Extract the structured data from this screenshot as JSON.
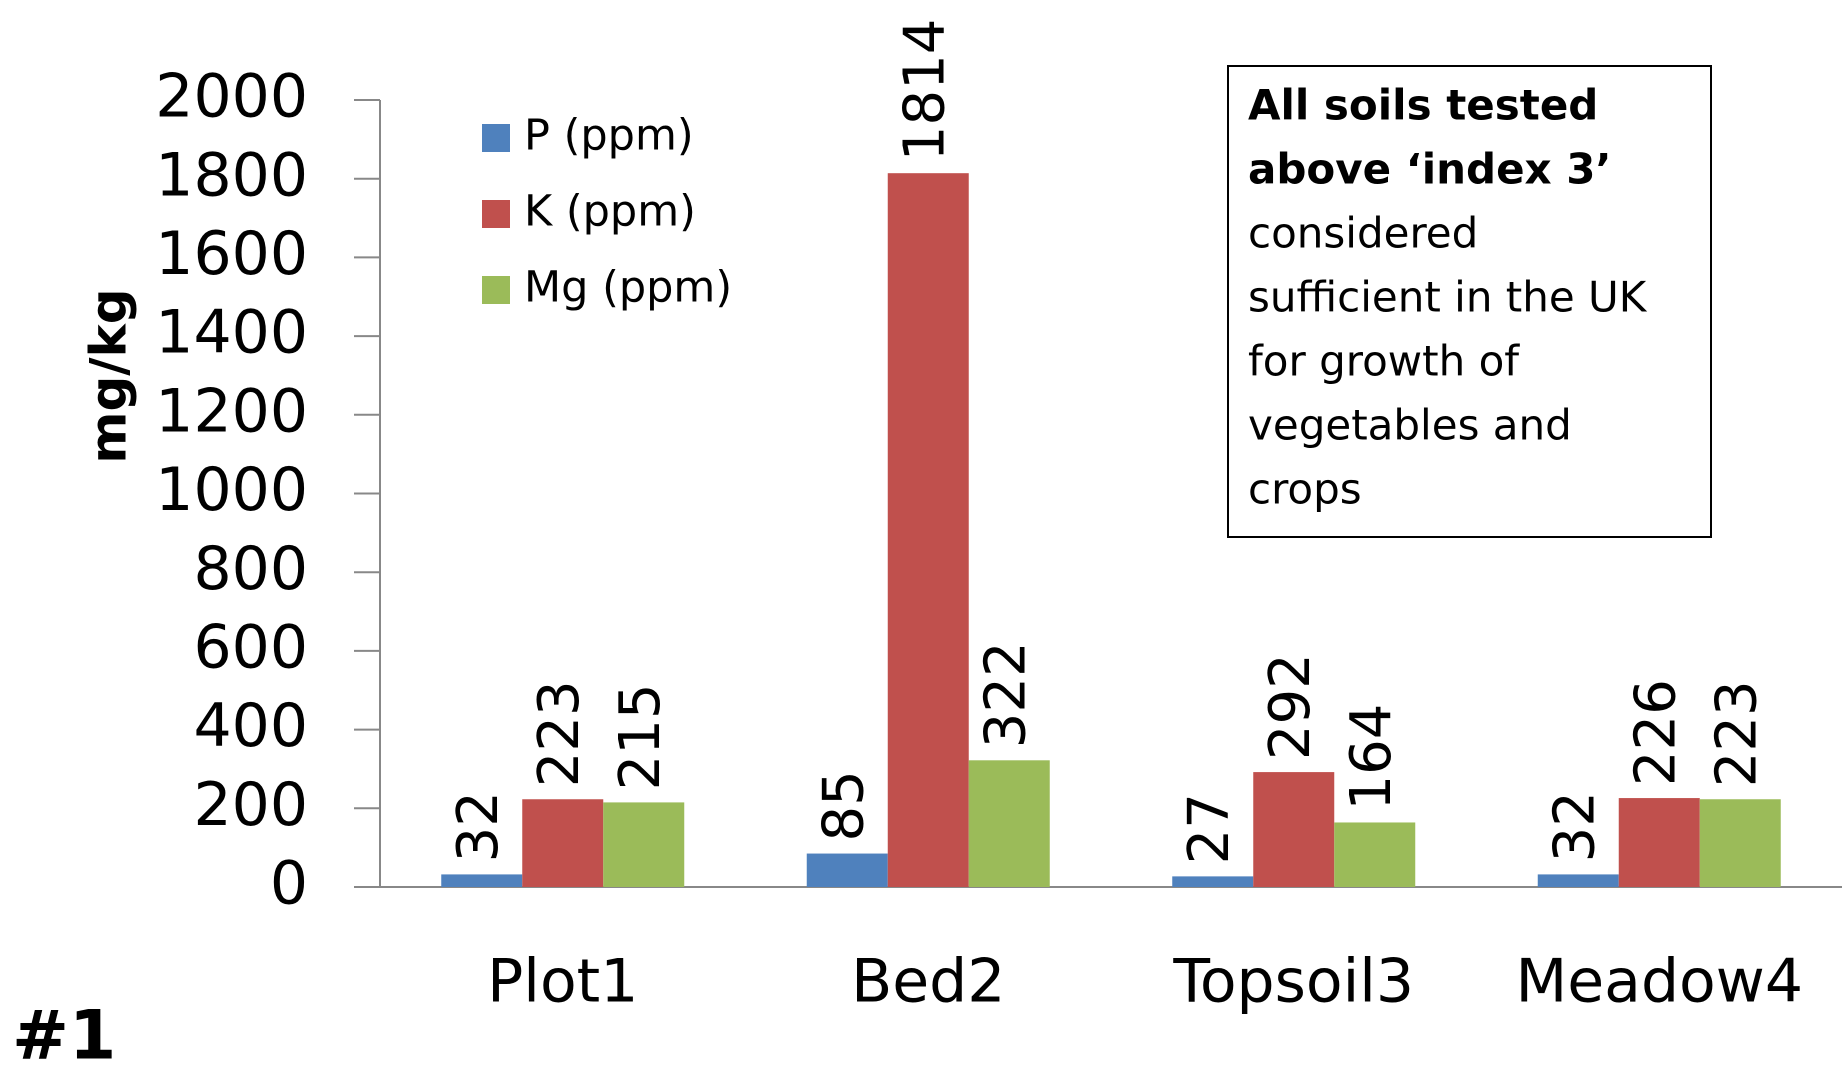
{
  "chart_data": {
    "type": "bar",
    "ylabel": "mg/kg",
    "categories": [
      "Plot1",
      "Bed2",
      "Topsoil3",
      "Meadow4"
    ],
    "series": [
      {
        "name": "P (ppm)",
        "color": "#4f81bd",
        "values": [
          32,
          85,
          27,
          32
        ]
      },
      {
        "name": "K (ppm)",
        "color": "#c0504d",
        "values": [
          223,
          1814,
          292,
          226
        ]
      },
      {
        "name": "Mg (ppm)",
        "color": "#9bbb59",
        "values": [
          215,
          322,
          164,
          223
        ]
      }
    ],
    "ylim": [
      0,
      2000
    ],
    "yticks": [
      0,
      200,
      400,
      600,
      800,
      1000,
      1200,
      1400,
      1600,
      1800,
      2000
    ],
    "grid": false,
    "legend": "upper left",
    "annotation": {
      "bold": [
        "All soils tested",
        "above ‘index 3’"
      ],
      "text": [
        "considered",
        "sufficient in the UK",
        "for growth of",
        "vegetables and",
        "crops"
      ]
    },
    "panel_label": "#1"
  }
}
